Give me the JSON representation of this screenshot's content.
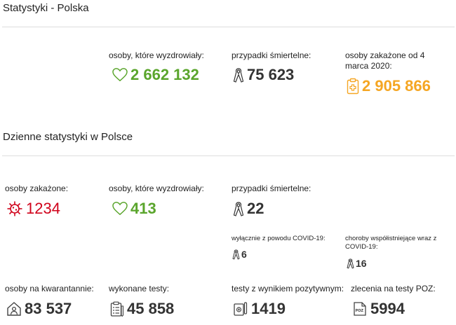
{
  "sections": {
    "country_title": "Statystyki - Polska",
    "daily_title": "Dzienne statystyki w Polsce"
  },
  "colors": {
    "recovered": "#5aa52c",
    "deaths": "#333333",
    "infected_total": "#f5a623",
    "infected_daily": "#d0021b",
    "neutral_value": "#333333"
  },
  "totals": {
    "recovered": {
      "label": "osoby, które wyzdrowiały:",
      "value": "2 662 132",
      "icon": "heart-icon"
    },
    "deaths": {
      "label": "przypadki śmiertelne:",
      "value": "75 623",
      "icon": "ribbon-icon"
    },
    "infected": {
      "label": "osoby zakażone od 4 marca 2020:",
      "value": "2 905 866",
      "icon": "clipboard-medical-icon"
    }
  },
  "daily": {
    "infected": {
      "label": "osoby zakażone:",
      "value": "1234",
      "icon": "virus-icon"
    },
    "recovered": {
      "label": "osoby, które wyzdrowiały:",
      "value": "413",
      "icon": "heart-icon"
    },
    "deaths": {
      "label": "przypadki śmiertelne:",
      "value": "22",
      "icon": "ribbon-icon"
    },
    "deaths_covid_only": {
      "label": "wyłącznie z powodu COVID-19:",
      "value": "6",
      "icon": "ribbon-icon"
    },
    "deaths_comorbid": {
      "label": "choroby współistniejące wraz z COVID-19:",
      "value": "16",
      "icon": "ribbon-icon"
    },
    "quarantine": {
      "label": "osoby na kwarantannie:",
      "value": "83 537",
      "icon": "house-person-icon"
    },
    "tests": {
      "label": "wykonane testy:",
      "value": "45 858",
      "icon": "clipboard-list-icon"
    },
    "positive_tests": {
      "label": "testy z wynikiem pozytywnym:",
      "value": "1419",
      "icon": "test-kit-icon"
    },
    "poz_orders": {
      "label": "zlecenia na testy POZ:",
      "value": "5994",
      "icon": "poz-doc-icon"
    }
  }
}
